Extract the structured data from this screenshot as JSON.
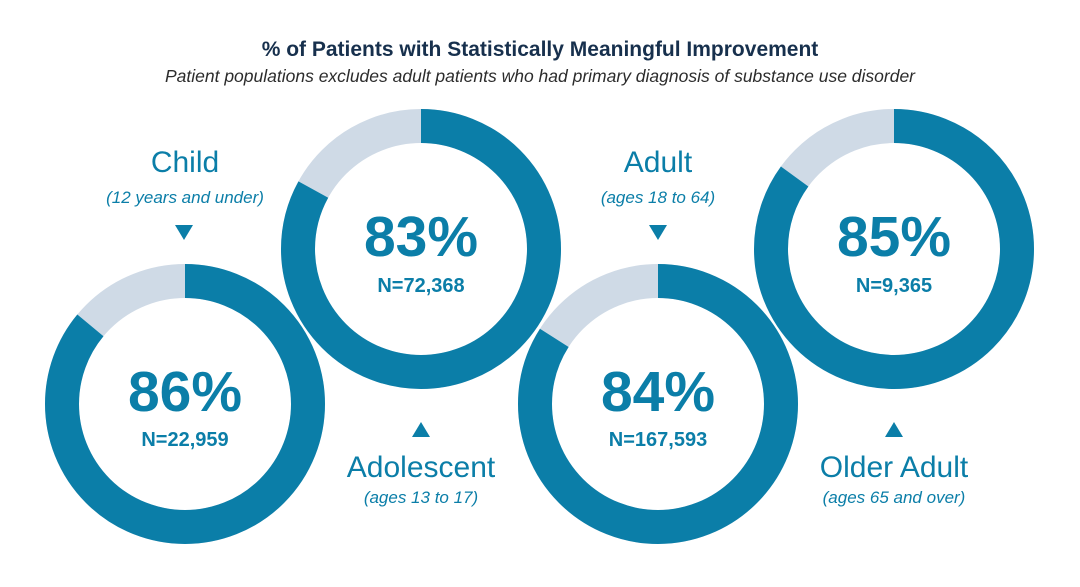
{
  "title": "% of Patients with Statistically Meaningful Improvement",
  "subtitle": "Patient populations excludes adult patients who had primary diagnosis of substance use disorder",
  "colors": {
    "filled": "#0b7ea8",
    "remainder": "#cfdae6",
    "text": "#0b7ea8"
  },
  "chart_data": {
    "type": "pie",
    "variant": "donut",
    "series": [
      {
        "label": "Child",
        "ages": "(12 years and under)",
        "percent_label": "86%",
        "value": 86,
        "n_label": "N=22,959",
        "n": 22959
      },
      {
        "label": "Adolescent",
        "ages": "(ages 13 to 17)",
        "percent_label": "83%",
        "value": 83,
        "n_label": "N=72,368",
        "n": 72368
      },
      {
        "label": "Adult",
        "ages": "(ages 18 to 64)",
        "percent_label": "84%",
        "value": 84,
        "n_label": "N=167,593",
        "n": 167593
      },
      {
        "label": "Older Adult",
        "ages": "(ages 65 and over)",
        "percent_label": "85%",
        "value": 85,
        "n_label": "N=9,365",
        "n": 9365
      }
    ]
  }
}
